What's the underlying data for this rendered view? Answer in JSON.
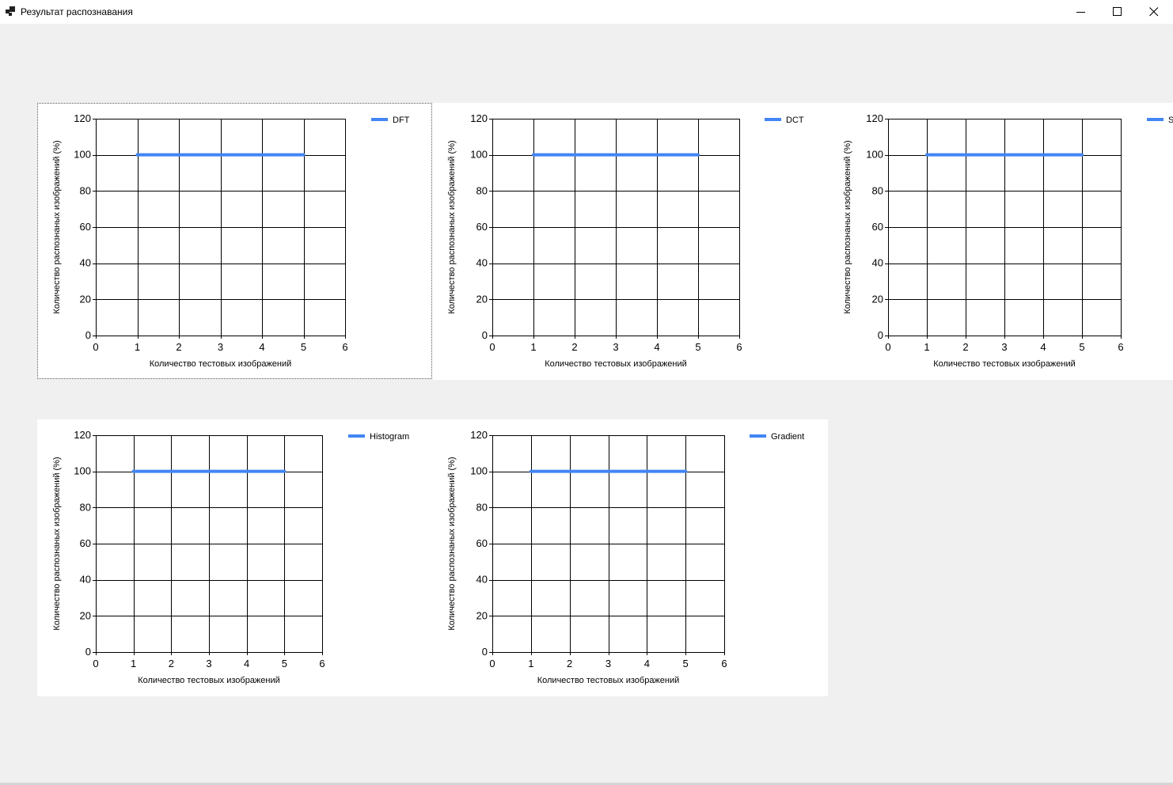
{
  "window": {
    "title": "Результат распознавания",
    "controls": {
      "minimize": "minimize-icon",
      "maximize": "maximize-icon",
      "close": "close-icon"
    }
  },
  "colors": {
    "series": "#4285f4",
    "background": "#f0f0f0",
    "panel": "#ffffff"
  },
  "chart_data": [
    {
      "type": "line",
      "legend": "DFT",
      "x": [
        1,
        2,
        3,
        4,
        5
      ],
      "values": [
        100,
        100,
        100,
        100,
        100
      ],
      "xlabel": "Количество тестовых изображений",
      "ylabel": "Количество распознаных изображений (%)",
      "xlim": [
        0,
        6
      ],
      "ylim": [
        0,
        120
      ],
      "xticks": [
        0,
        1,
        2,
        3,
        4,
        5,
        6
      ],
      "yticks": [
        0,
        20,
        40,
        60,
        80,
        100,
        120
      ],
      "grid": true,
      "legend_position": "top-right"
    },
    {
      "type": "line",
      "legend": "DCT",
      "x": [
        1,
        2,
        3,
        4,
        5
      ],
      "values": [
        100,
        100,
        100,
        100,
        100
      ],
      "xlabel": "Количество тестовых изображений",
      "ylabel": "Количество распознаных изображений (%)",
      "xlim": [
        0,
        6
      ],
      "ylim": [
        0,
        120
      ],
      "xticks": [
        0,
        1,
        2,
        3,
        4,
        5,
        6
      ],
      "yticks": [
        0,
        20,
        40,
        60,
        80,
        100,
        120
      ],
      "grid": true,
      "legend_position": "top-right"
    },
    {
      "type": "line",
      "legend": "S",
      "x": [
        1,
        2,
        3,
        4,
        5
      ],
      "values": [
        100,
        100,
        100,
        100,
        100
      ],
      "xlabel": "Количество тестовых изображений",
      "ylabel": "Количество распознаных изображений (%)",
      "xlim": [
        0,
        6
      ],
      "ylim": [
        0,
        120
      ],
      "xticks": [
        0,
        1,
        2,
        3,
        4,
        5,
        6
      ],
      "yticks": [
        0,
        20,
        40,
        60,
        80,
        100,
        120
      ],
      "grid": true,
      "legend_position": "top-right"
    },
    {
      "type": "line",
      "legend": "Histogram",
      "x": [
        1,
        2,
        3,
        4,
        5
      ],
      "values": [
        100,
        100,
        100,
        100,
        100
      ],
      "xlabel": "Количество тестовых изображений",
      "ylabel": "Количество распознаных изображений (%)",
      "xlim": [
        0,
        6
      ],
      "ylim": [
        0,
        120
      ],
      "xticks": [
        0,
        1,
        2,
        3,
        4,
        5,
        6
      ],
      "yticks": [
        0,
        20,
        40,
        60,
        80,
        100,
        120
      ],
      "grid": true,
      "legend_position": "top-right"
    },
    {
      "type": "line",
      "legend": "Gradient",
      "x": [
        1,
        2,
        3,
        4,
        5
      ],
      "values": [
        100,
        100,
        100,
        100,
        100
      ],
      "xlabel": "Количество тестовых изображений",
      "ylabel": "Количество распознаных изображений (%)",
      "xlim": [
        0,
        6
      ],
      "ylim": [
        0,
        120
      ],
      "xticks": [
        0,
        1,
        2,
        3,
        4,
        5,
        6
      ],
      "yticks": [
        0,
        20,
        40,
        60,
        80,
        100,
        120
      ],
      "grid": true,
      "legend_position": "top-right"
    }
  ]
}
